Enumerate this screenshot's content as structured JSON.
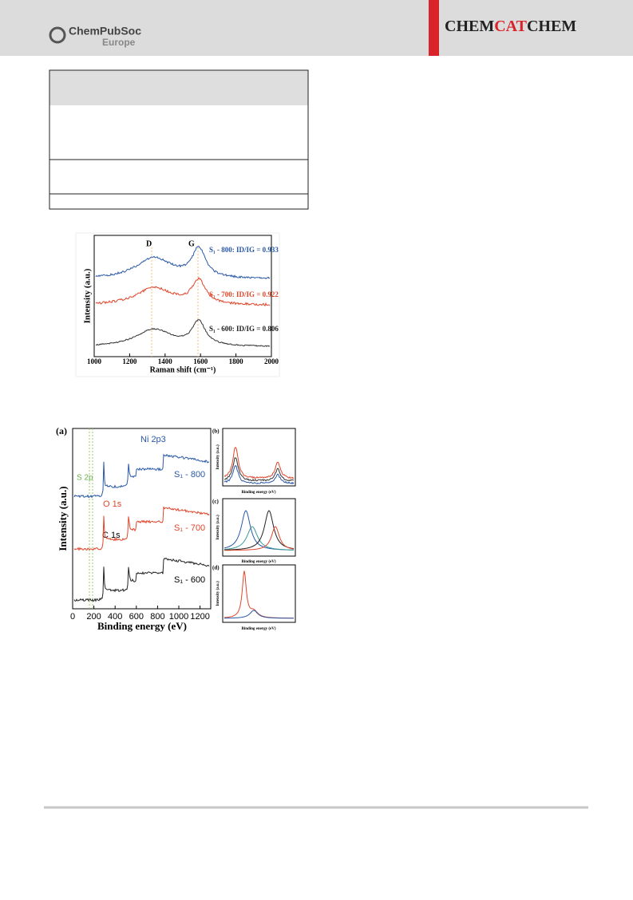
{
  "header": {
    "society": "ChemPubSoc",
    "society_sub": "Europe",
    "journal": [
      "CHEM",
      "CAT",
      "CHEM"
    ]
  },
  "figure_raman": {
    "peaks": [
      "D",
      "G"
    ],
    "series": [
      "S₁ - 800: ID/IG = 0.933",
      "S₁ - 700: ID/IG = 0.922",
      "S₁ - 600: ID/IG = 0.806"
    ],
    "xticks": [
      "1000",
      "1200",
      "1400",
      "1600",
      "1800",
      "2000"
    ],
    "xlabel": "Raman shift (cm⁻¹)",
    "ylabel": "Intensity (a.u.)"
  },
  "figure_xps": {
    "panel_a": "(a)",
    "labels": [
      "Ni 2p3",
      "S 2p",
      "O 1s",
      "C 1s"
    ],
    "series": [
      "S₁ - 800",
      "S₁ - 700",
      "S₁ - 600"
    ],
    "xticks": [
      "0",
      "200",
      "400",
      "600",
      "800",
      "1000",
      "1200"
    ],
    "xlabel": "Binding energy (eV)",
    "ylabel": "Intensity (a.u.)",
    "panel_b": "(b)",
    "panel_c": "(c)",
    "panel_d": "(d)",
    "small_xlabel": "Binding energy (eV)",
    "small_ylabel": "Intensity (a.u.)"
  }
}
